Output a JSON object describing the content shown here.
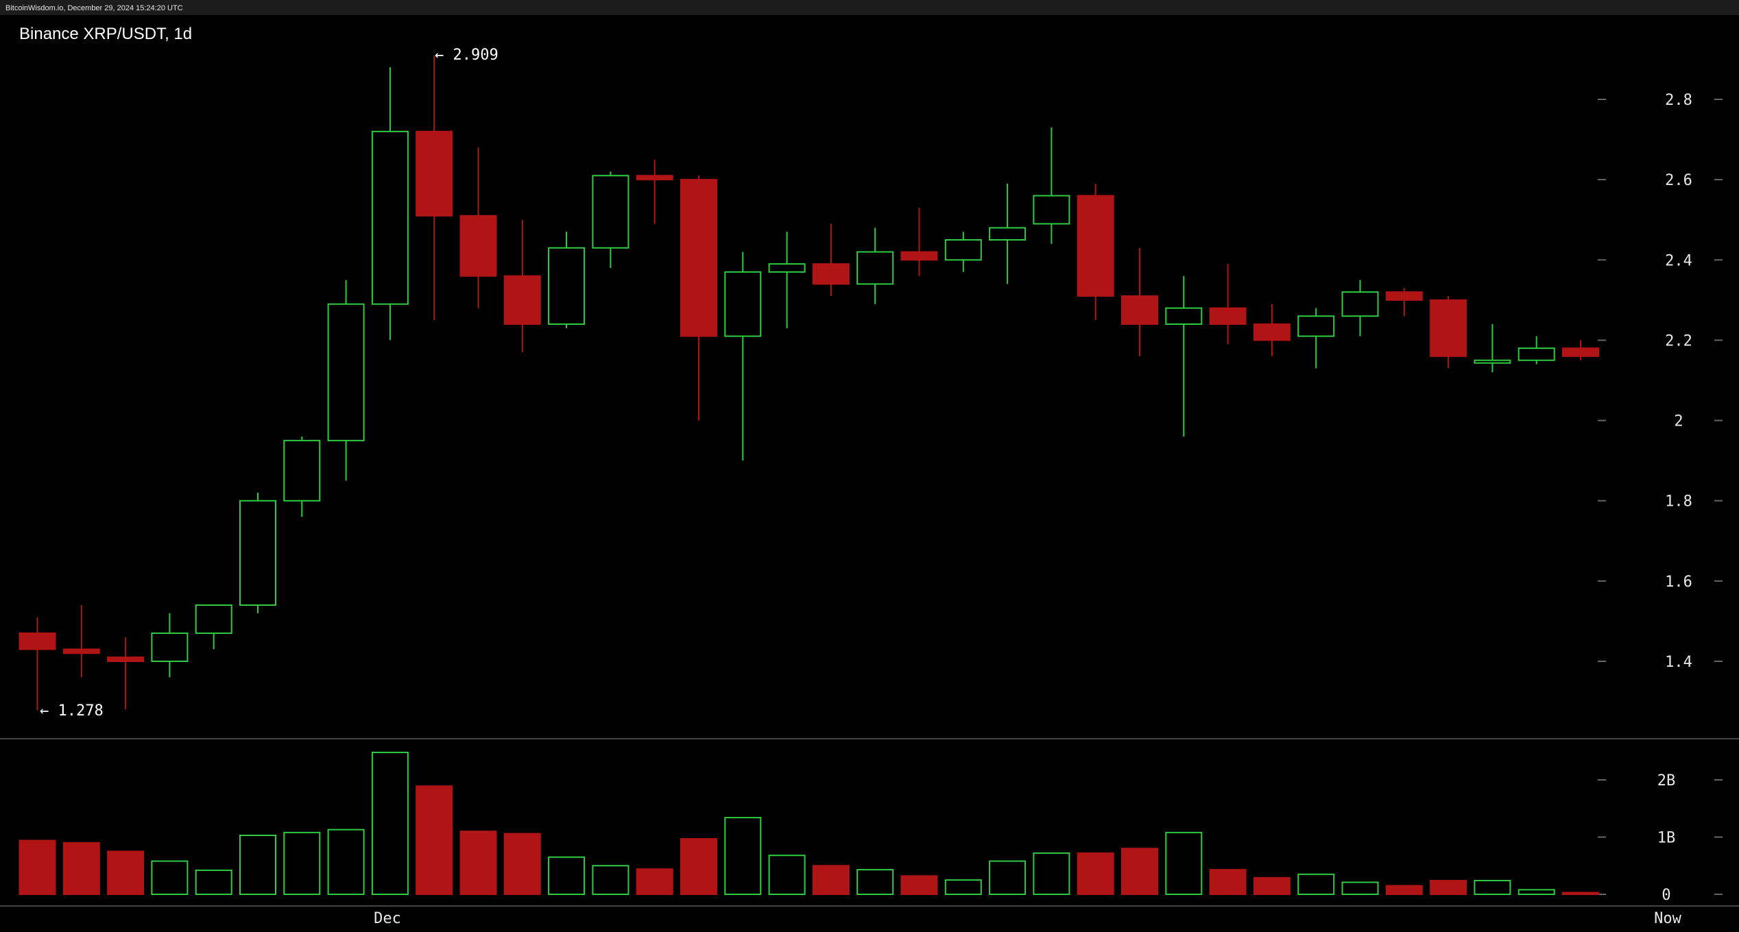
{
  "header": {
    "source": "BitcoinWisdom.io, December 29, 2024 15:24:20 UTC",
    "title": "Binance XRP/USDT, 1d"
  },
  "colors": {
    "up": "#2ecc40",
    "down": "#b01414",
    "background": "#000000",
    "text": "#e8e8e8",
    "tick": "#666666",
    "divider": "#444444"
  },
  "chart_data": {
    "type": "candlestick",
    "timeframe": "1d",
    "pair": "XRP/USDT",
    "exchange": "Binance",
    "ylim": [
      1.25,
      2.96
    ],
    "price_ticks": [
      "2.8",
      "2.6",
      "2.4",
      "2.2",
      "2",
      "1.8",
      "1.6",
      "1.4"
    ],
    "volume_ticks": [
      "2B",
      "1B",
      "0"
    ],
    "x_labels": [
      "Dec",
      "Now"
    ],
    "annotations": {
      "high": "← 2.909",
      "low": "← 1.278"
    },
    "candles": [
      {
        "o": 1.47,
        "h": 1.51,
        "l": 1.278,
        "c": 1.43,
        "v": 0.94
      },
      {
        "o": 1.43,
        "h": 1.54,
        "l": 1.36,
        "c": 1.42,
        "v": 0.9
      },
      {
        "o": 1.41,
        "h": 1.46,
        "l": 1.28,
        "c": 1.4,
        "v": 0.75
      },
      {
        "o": 1.4,
        "h": 1.52,
        "l": 1.36,
        "c": 1.47,
        "v": 0.58
      },
      {
        "o": 1.47,
        "h": 1.54,
        "l": 1.43,
        "c": 1.54,
        "v": 0.42
      },
      {
        "o": 1.54,
        "h": 1.82,
        "l": 1.52,
        "c": 1.8,
        "v": 1.03
      },
      {
        "o": 1.8,
        "h": 1.96,
        "l": 1.76,
        "c": 1.95,
        "v": 1.08
      },
      {
        "o": 1.95,
        "h": 2.35,
        "l": 1.85,
        "c": 2.29,
        "v": 1.13
      },
      {
        "o": 2.29,
        "h": 2.88,
        "l": 2.2,
        "c": 2.72,
        "v": 2.48
      },
      {
        "o": 2.72,
        "h": 2.909,
        "l": 2.25,
        "c": 2.51,
        "v": 1.89
      },
      {
        "o": 2.51,
        "h": 2.68,
        "l": 2.28,
        "c": 2.36,
        "v": 1.1
      },
      {
        "o": 2.36,
        "h": 2.5,
        "l": 2.17,
        "c": 2.24,
        "v": 1.06
      },
      {
        "o": 2.24,
        "h": 2.47,
        "l": 2.23,
        "c": 2.43,
        "v": 0.65
      },
      {
        "o": 2.43,
        "h": 2.62,
        "l": 2.38,
        "c": 2.61,
        "v": 0.5
      },
      {
        "o": 2.61,
        "h": 2.65,
        "l": 2.49,
        "c": 2.6,
        "v": 0.44
      },
      {
        "o": 2.6,
        "h": 2.61,
        "l": 2.0,
        "c": 2.21,
        "v": 0.97
      },
      {
        "o": 2.21,
        "h": 2.42,
        "l": 1.9,
        "c": 2.37,
        "v": 1.34
      },
      {
        "o": 2.37,
        "h": 2.47,
        "l": 2.23,
        "c": 2.39,
        "v": 0.68
      },
      {
        "o": 2.39,
        "h": 2.49,
        "l": 2.31,
        "c": 2.34,
        "v": 0.5
      },
      {
        "o": 2.34,
        "h": 2.48,
        "l": 2.29,
        "c": 2.42,
        "v": 0.43
      },
      {
        "o": 2.42,
        "h": 2.53,
        "l": 2.36,
        "c": 2.4,
        "v": 0.32
      },
      {
        "o": 2.4,
        "h": 2.47,
        "l": 2.37,
        "c": 2.45,
        "v": 0.25
      },
      {
        "o": 2.45,
        "h": 2.59,
        "l": 2.34,
        "c": 2.48,
        "v": 0.58
      },
      {
        "o": 2.49,
        "h": 2.73,
        "l": 2.44,
        "c": 2.56,
        "v": 0.72
      },
      {
        "o": 2.56,
        "h": 2.59,
        "l": 2.25,
        "c": 2.31,
        "v": 0.72
      },
      {
        "o": 2.31,
        "h": 2.43,
        "l": 2.16,
        "c": 2.24,
        "v": 0.8
      },
      {
        "o": 2.24,
        "h": 2.36,
        "l": 1.96,
        "c": 2.28,
        "v": 1.08
      },
      {
        "o": 2.28,
        "h": 2.39,
        "l": 2.19,
        "c": 2.24,
        "v": 0.43
      },
      {
        "o": 2.24,
        "h": 2.29,
        "l": 2.16,
        "c": 2.2,
        "v": 0.29
      },
      {
        "o": 2.21,
        "h": 2.28,
        "l": 2.13,
        "c": 2.26,
        "v": 0.35
      },
      {
        "o": 2.26,
        "h": 2.35,
        "l": 2.21,
        "c": 2.32,
        "v": 0.21
      },
      {
        "o": 2.32,
        "h": 2.33,
        "l": 2.26,
        "c": 2.3,
        "v": 0.15
      },
      {
        "o": 2.3,
        "h": 2.31,
        "l": 2.13,
        "c": 2.16,
        "v": 0.24
      },
      {
        "o": 2.15,
        "h": 2.24,
        "l": 2.12,
        "c": 2.15,
        "v": 0.24
      },
      {
        "o": 2.15,
        "h": 2.21,
        "l": 2.14,
        "c": 2.18,
        "v": 0.08
      },
      {
        "o": 2.18,
        "h": 2.2,
        "l": 2.15,
        "c": 2.16,
        "v": 0.03
      }
    ]
  }
}
